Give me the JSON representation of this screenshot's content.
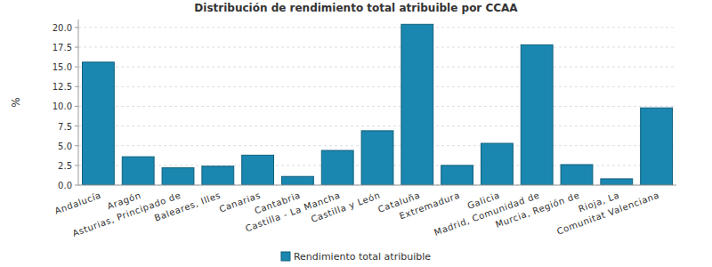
{
  "chart_data": {
    "type": "bar",
    "title": "Distribución de rendimiento total atribuible por CCAA",
    "y_label": "%",
    "categories": [
      "Andalucía",
      "Aragón",
      "Asturias, Principado de",
      "Baleares, Illes",
      "Canarias",
      "Cantabria",
      "Castilla - La Mancha",
      "Castilla y León",
      "Cataluña",
      "Extremadura",
      "Galicia",
      "Madrid, Comunidad de",
      "Murcia, Región de",
      "Rioja, La",
      "Comunitat Valenciana"
    ],
    "series": [
      {
        "name": "Rendimiento total atribuible",
        "color": "#1a87b0",
        "values": [
          15.6,
          3.6,
          2.2,
          2.4,
          3.8,
          1.1,
          4.4,
          6.9,
          20.4,
          2.5,
          5.3,
          17.8,
          2.6,
          0.8,
          9.8
        ]
      }
    ],
    "ylim": [
      0,
      21
    ],
    "yticks": [
      {
        "value": 0,
        "label": "0.0"
      },
      2.5,
      {
        "value": 5,
        "label": "5.0"
      },
      7.5,
      {
        "value": 10,
        "label": "10.0"
      },
      12.5,
      {
        "value": 15,
        "label": "15.0"
      },
      17.5,
      {
        "value": 20,
        "label": "20.0"
      }
    ],
    "grid": true,
    "legend": "bottom"
  }
}
